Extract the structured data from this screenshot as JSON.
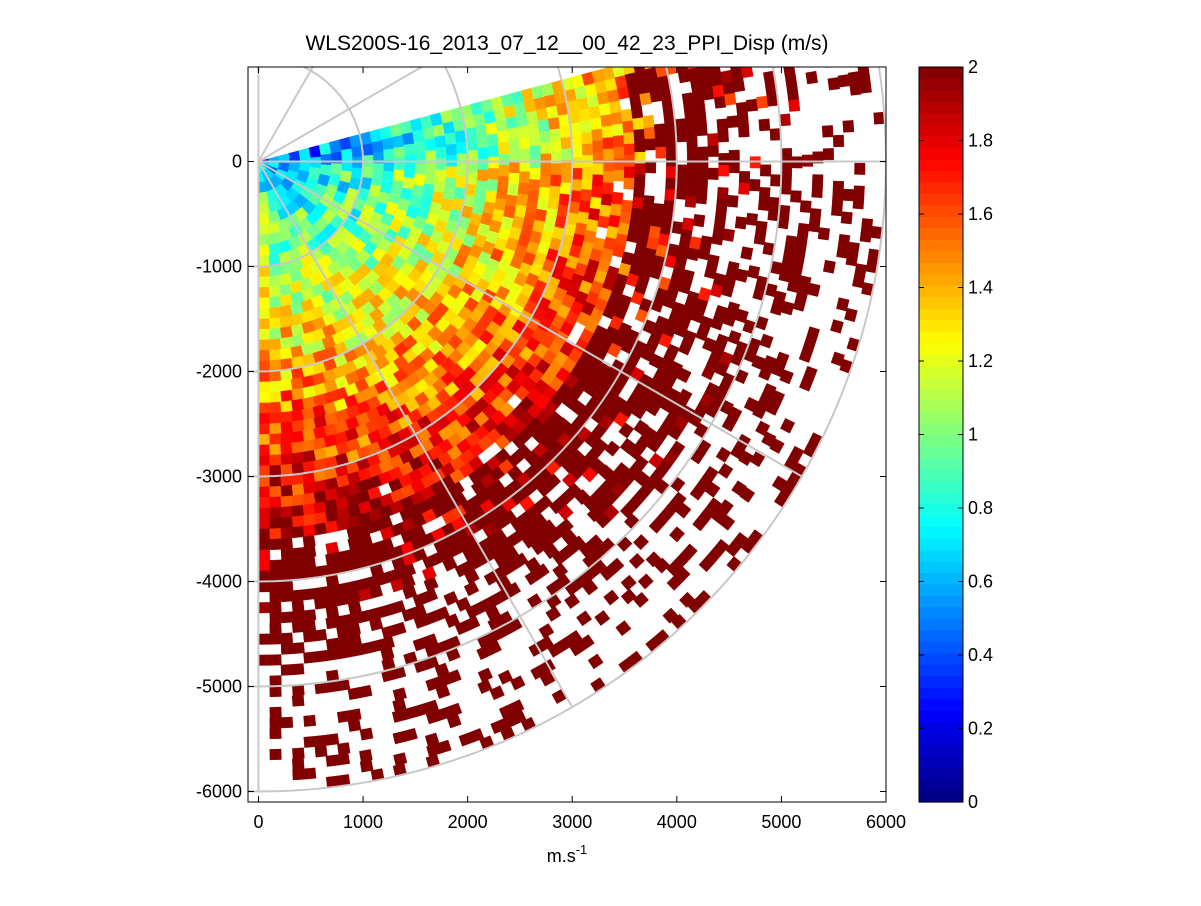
{
  "chart_data": {
    "type": "heatmap",
    "subtype": "polar-ppi-scan",
    "title": "WLS200S-16_2013_07_12__00_42_23_PPI_Disp (m/s)",
    "xlabel": "m.s",
    "xlabel_superscript": "-1",
    "ylabel": "",
    "xlim": [
      -100,
      6000
    ],
    "ylim": [
      -6100,
      900
    ],
    "xticks": [
      0,
      1000,
      2000,
      3000,
      4000,
      5000,
      6000
    ],
    "yticks": [
      0,
      -1000,
      -2000,
      -3000,
      -4000,
      -5000,
      -6000
    ],
    "xtick_labels": [
      "0",
      "1000",
      "2000",
      "3000",
      "4000",
      "5000",
      "6000"
    ],
    "ytick_labels": [
      "0",
      "-1000",
      "-2000",
      "-3000",
      "-4000",
      "-5000",
      "-6000"
    ],
    "grid": "polar",
    "polar_grid_radii": [
      1000,
      2000,
      3000,
      4000,
      5000,
      6000
    ],
    "polar_grid_angles_deg": [
      90,
      60,
      30,
      0,
      -30,
      -60,
      -90
    ],
    "scan": {
      "origin": [
        0,
        0
      ],
      "azimuth_range_deg": [
        -90,
        15
      ],
      "max_range": 6100,
      "range_gate_size": 100,
      "note": "Displacement value generally rises with range: ~0.4-0.8 m/s near origin, ~1.0-1.2 m/s at mid range, saturating at 2 m/s beyond ~3500 m; data become sparse at far range."
    },
    "colorbar": {
      "colormap": "jet",
      "min": 0,
      "max": 2,
      "ticks": [
        0,
        0.2,
        0.4,
        0.6,
        0.8,
        1,
        1.2,
        1.4,
        1.6,
        1.8,
        2
      ],
      "tick_labels": [
        "0",
        "0.2",
        "0.4",
        "0.6",
        "0.8",
        "1",
        "1.2",
        "1.4",
        "1.6",
        "1.8",
        "2"
      ]
    }
  }
}
